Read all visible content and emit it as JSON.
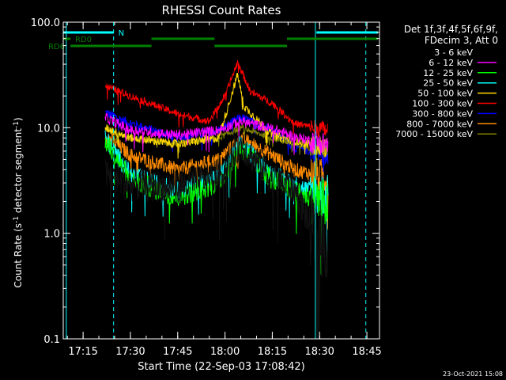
{
  "chart_data": {
    "type": "line",
    "title": "RHESSI Count Rates",
    "xlabel": "Start Time (22-Sep-03 17:08:42)",
    "ylabel_main": "Count Rate (s",
    "ylabel_sup1": "-1",
    "ylabel_mid": " detector segment",
    "ylabel_sup2": "-1",
    "ylabel_end": ")",
    "yscale": "log",
    "ylim": [
      0.1,
      100.0
    ],
    "xlim": [
      "17:08:42",
      "18:49:00"
    ],
    "x_ticks": [
      "17:15",
      "17:30",
      "17:45",
      "18:00",
      "18:15",
      "18:30",
      "18:45"
    ],
    "y_ticks": [
      "0.1",
      "1.0",
      "10.0",
      "100.0"
    ],
    "legend_header": [
      "Det 1f,3f,4f,5f,6f,9f,",
      "FDecim 3, Att 0"
    ],
    "legend_position": "right",
    "timestamp": "23-Oct-2021 15:08",
    "data_start": "17:22:00",
    "data_end": "18:32:40",
    "series": [
      {
        "name": "3 - 6 keV",
        "color": "#000000",
        "keypoints": [
          [
            "17:22:00",
            3.6
          ],
          [
            "17:30:00",
            2.9
          ],
          [
            "17:45:00",
            2.7
          ],
          [
            "17:58:00",
            3.6
          ],
          [
            "18:05:00",
            7.0
          ],
          [
            "18:15:00",
            3.3
          ],
          [
            "18:22:00",
            2.7
          ],
          [
            "18:28:00",
            1.0
          ],
          [
            "18:32:00",
            0.8
          ]
        ]
      },
      {
        "name": "6 - 12 keV",
        "color": "#ff00ff",
        "keypoints": [
          [
            "17:22:00",
            12.5
          ],
          [
            "17:30:00",
            9.5
          ],
          [
            "17:45:00",
            8.5
          ],
          [
            "17:58:00",
            9.5
          ],
          [
            "18:05:00",
            11.5
          ],
          [
            "18:15:00",
            9.8
          ],
          [
            "18:22:00",
            8.2
          ],
          [
            "18:32:00",
            7.0
          ]
        ]
      },
      {
        "name": "12 - 25 keV",
        "color": "#00ff00",
        "keypoints": [
          [
            "17:22:00",
            7.5
          ],
          [
            "17:30:00",
            3.2
          ],
          [
            "17:45:00",
            2.2
          ],
          [
            "17:58:00",
            3.0
          ],
          [
            "18:05:00",
            6.5
          ],
          [
            "18:15:00",
            3.2
          ],
          [
            "18:22:00",
            2.5
          ],
          [
            "18:32:00",
            1.9
          ]
        ]
      },
      {
        "name": "25 - 50 keV",
        "color": "#00ffff",
        "keypoints": [
          [
            "17:22:00",
            8.0
          ],
          [
            "17:30:00",
            3.6
          ],
          [
            "17:45:00",
            2.5
          ],
          [
            "17:58:00",
            3.4
          ],
          [
            "18:05:00",
            7.0
          ],
          [
            "18:15:00",
            3.6
          ],
          [
            "18:22:00",
            2.9
          ],
          [
            "18:32:00",
            2.2
          ]
        ]
      },
      {
        "name": "50 - 100 keV",
        "color": "#ffd700",
        "keypoints": [
          [
            "17:22:00",
            10.0
          ],
          [
            "17:30:00",
            8.0
          ],
          [
            "17:45:00",
            7.0
          ],
          [
            "17:58:00",
            8.0
          ],
          [
            "18:04:00",
            32.0
          ],
          [
            "18:06:00",
            16.0
          ],
          [
            "18:15:00",
            8.5
          ],
          [
            "18:22:00",
            7.5
          ],
          [
            "18:32:00",
            6.5
          ]
        ]
      },
      {
        "name": "100 - 300 keV",
        "color": "#ff0000",
        "keypoints": [
          [
            "17:22:00",
            25.0
          ],
          [
            "17:30:00",
            20.0
          ],
          [
            "17:45:00",
            13.5
          ],
          [
            "17:55:00",
            11.5
          ],
          [
            "18:00:00",
            20.0
          ],
          [
            "18:04:00",
            42.0
          ],
          [
            "18:08:00",
            22.0
          ],
          [
            "18:15:00",
            17.0
          ],
          [
            "18:22:00",
            11.0
          ],
          [
            "18:32:00",
            9.5
          ]
        ]
      },
      {
        "name": "300 - 800 keV",
        "color": "#0000ff",
        "keypoints": [
          [
            "17:22:00",
            14.0
          ],
          [
            "17:30:00",
            11.0
          ],
          [
            "17:45:00",
            8.0
          ],
          [
            "17:58:00",
            9.5
          ],
          [
            "18:05:00",
            12.5
          ],
          [
            "18:15:00",
            9.5
          ],
          [
            "18:22:00",
            6.5
          ],
          [
            "18:32:00",
            5.5
          ]
        ]
      },
      {
        "name": "800 - 7000 keV",
        "color": "#ff8c00",
        "keypoints": [
          [
            "17:22:00",
            8.5
          ],
          [
            "17:30:00",
            5.5
          ],
          [
            "17:45:00",
            4.0
          ],
          [
            "17:58:00",
            5.0
          ],
          [
            "18:05:00",
            8.0
          ],
          [
            "18:15:00",
            5.5
          ],
          [
            "18:22:00",
            4.0
          ],
          [
            "18:32:00",
            3.4
          ]
        ]
      },
      {
        "name": "7000 - 15000 keV",
        "color": "#808000",
        "keypoints": [
          [
            "17:22:00",
            10.0
          ],
          [
            "17:30:00",
            8.0
          ],
          [
            "17:45:00",
            7.0
          ],
          [
            "17:58:00",
            8.0
          ],
          [
            "18:05:00",
            10.0
          ],
          [
            "18:15:00",
            8.0
          ],
          [
            "18:22:00",
            7.0
          ],
          [
            "18:32:00",
            6.0
          ]
        ]
      }
    ],
    "flag_bars": [
      {
        "label": "N",
        "color": "#00ffff",
        "segments": [
          [
            "17:08:42",
            "17:24:40"
          ],
          [
            "18:29:00",
            "18:48:30"
          ]
        ]
      },
      {
        "label": "RD0",
        "color": "#008000",
        "segments": [
          [
            "17:08:42",
            "17:11:00"
          ],
          [
            "17:36:40",
            "17:56:40"
          ],
          [
            "18:19:40",
            "18:48:30"
          ]
        ]
      },
      {
        "label": "RD6",
        "color": "#008000",
        "segments": [
          [
            "17:11:00",
            "17:36:40"
          ],
          [
            "17:56:40",
            "18:19:40"
          ]
        ]
      }
    ],
    "vlines": [
      {
        "time": "17:09:40",
        "style": "solid",
        "color": "#00ffff"
      },
      {
        "time": "17:24:40",
        "style": "dashed",
        "color": "#00ffff"
      },
      {
        "time": "18:28:40",
        "style": "solid",
        "color": "#00ffff"
      },
      {
        "time": "18:44:40",
        "style": "dashed",
        "color": "#00ffff"
      }
    ]
  }
}
